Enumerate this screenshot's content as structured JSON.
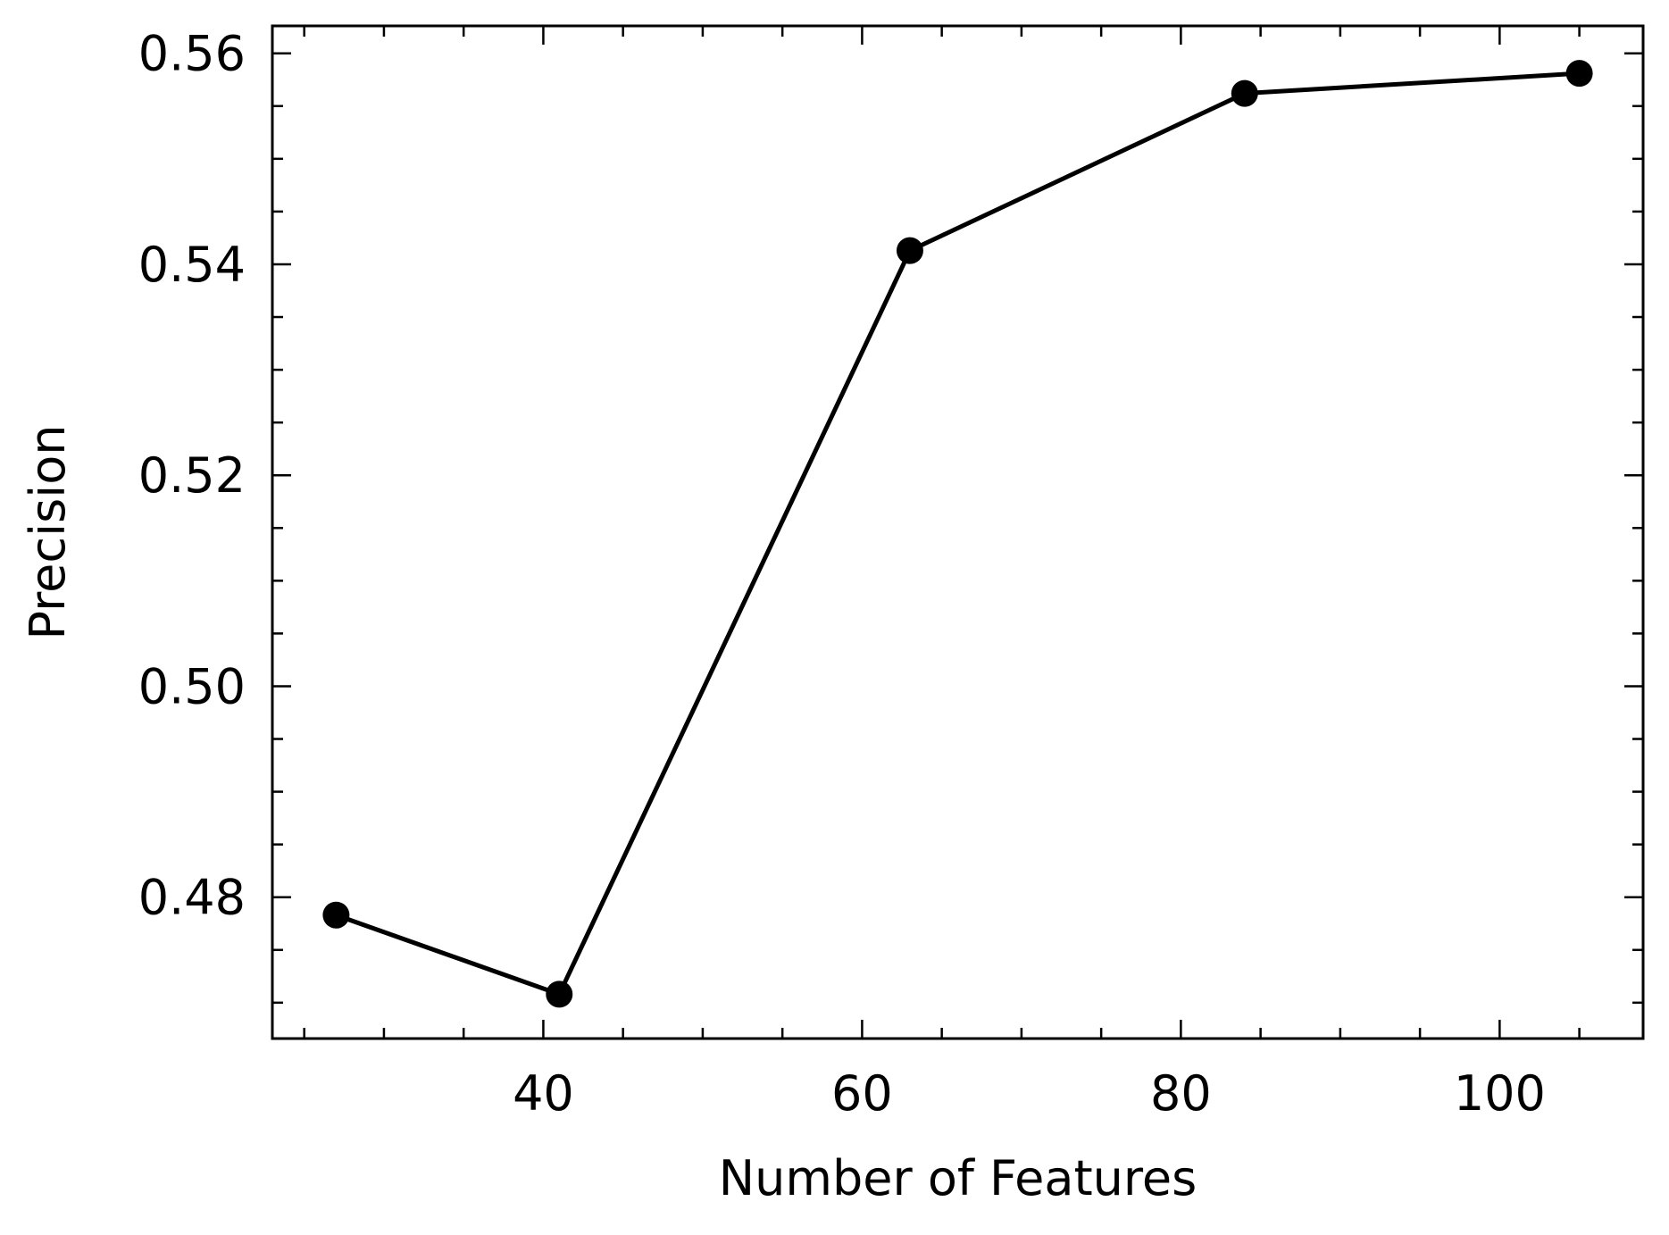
{
  "chart_data": {
    "type": "line",
    "title": "",
    "xlabel": "Number of Features",
    "ylabel": "Precision",
    "x": [
      27,
      41,
      63,
      84,
      105
    ],
    "series": [
      {
        "values": [
          0.4783,
          0.4708,
          0.5413,
          0.5562,
          0.5581
        ]
      }
    ],
    "xlim": [
      23,
      109
    ],
    "ylim": [
      0.4666,
      0.5626
    ],
    "x_ticks": [
      40,
      60,
      80,
      100
    ],
    "x_tick_labels": [
      "40",
      "60",
      "80",
      "100"
    ],
    "x_minor_tick_step": 5,
    "y_ticks": [
      0.48,
      0.5,
      0.52,
      0.54,
      0.56
    ],
    "y_tick_labels": [
      "0.48",
      "0.50",
      "0.52",
      "0.54",
      "0.56"
    ],
    "y_minor_tick_step": 0.005,
    "grid": false,
    "marker": "circle",
    "line_color": "#000000",
    "tick_direction": "in",
    "ticks_on_all_sides": true
  }
}
